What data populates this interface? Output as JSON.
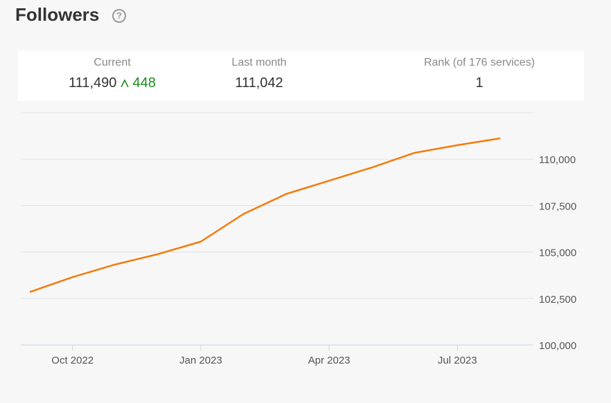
{
  "header": {
    "title": "Followers",
    "help": "?"
  },
  "stats": [
    {
      "label": "Current",
      "value": "111,490",
      "change": "448"
    },
    {
      "label": "Last month",
      "value": "111,042"
    },
    {
      "label": "Rank (of 176 services)",
      "value": "1"
    }
  ],
  "chart_data": {
    "type": "line",
    "color": "#f47a0a",
    "x": [
      "2022-09",
      "2022-10",
      "2022-11",
      "2022-12",
      "2023-01",
      "2023-02",
      "2023-03",
      "2023-04",
      "2023-05",
      "2023-06",
      "2023-07",
      "2023-08"
    ],
    "values": [
      102850,
      103650,
      104330,
      104890,
      105560,
      107050,
      108130,
      108840,
      109550,
      110340,
      110750,
      111120
    ],
    "xlim": [
      "2022-09",
      "2023-08"
    ],
    "xticks": [
      {
        "value": "2022-10",
        "label": "Oct 2022"
      },
      {
        "value": "2023-01",
        "label": "Jan 2023"
      },
      {
        "value": "2023-04",
        "label": "Apr 2023"
      },
      {
        "value": "2023-07",
        "label": "Jul 2023"
      }
    ],
    "ylim": [
      100000,
      112500
    ],
    "yticks": [
      {
        "value": 100000,
        "label": "100,000"
      },
      {
        "value": 102500,
        "label": "102,500"
      },
      {
        "value": 105000,
        "label": "105,000"
      },
      {
        "value": 107500,
        "label": "107,500"
      },
      {
        "value": 110000,
        "label": "110,000"
      }
    ],
    "grid": true
  }
}
